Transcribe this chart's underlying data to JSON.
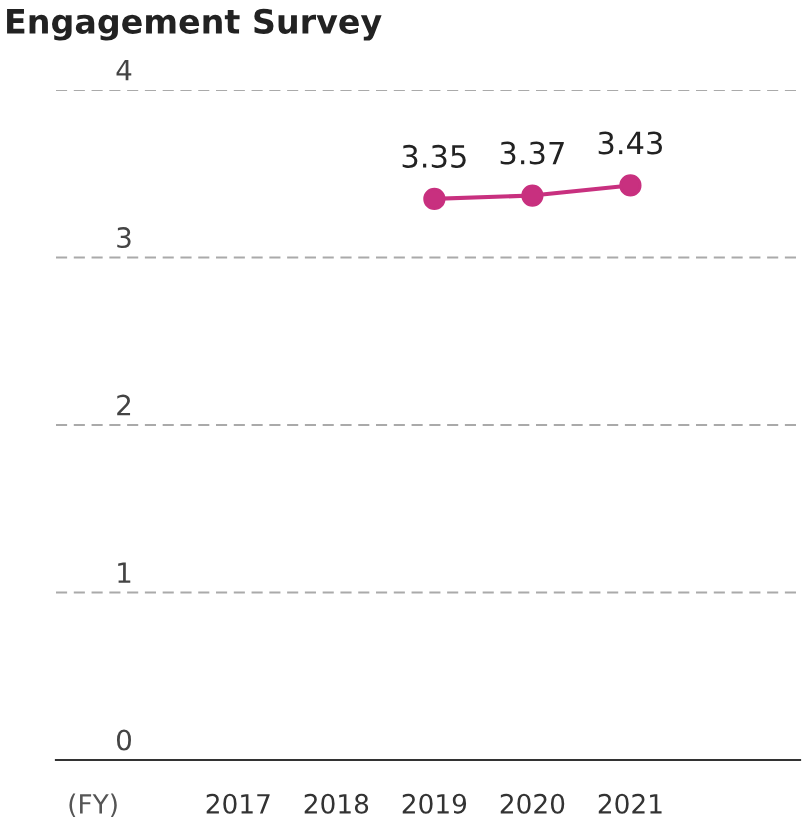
{
  "chart_data": {
    "type": "line",
    "title": "Engagement Survey",
    "xlabel": "(FY)",
    "categories": [
      "2017",
      "2018",
      "2019",
      "2020",
      "2021"
    ],
    "series": [
      {
        "color": "#c8307f",
        "values": [
          null,
          null,
          3.35,
          3.37,
          3.43
        ]
      }
    ],
    "ylim": [
      0,
      4
    ],
    "yticks": [
      0,
      1,
      2,
      3,
      4
    ],
    "grid": "y",
    "marker": "circle",
    "line_style": "solid",
    "data_labels": true
  }
}
